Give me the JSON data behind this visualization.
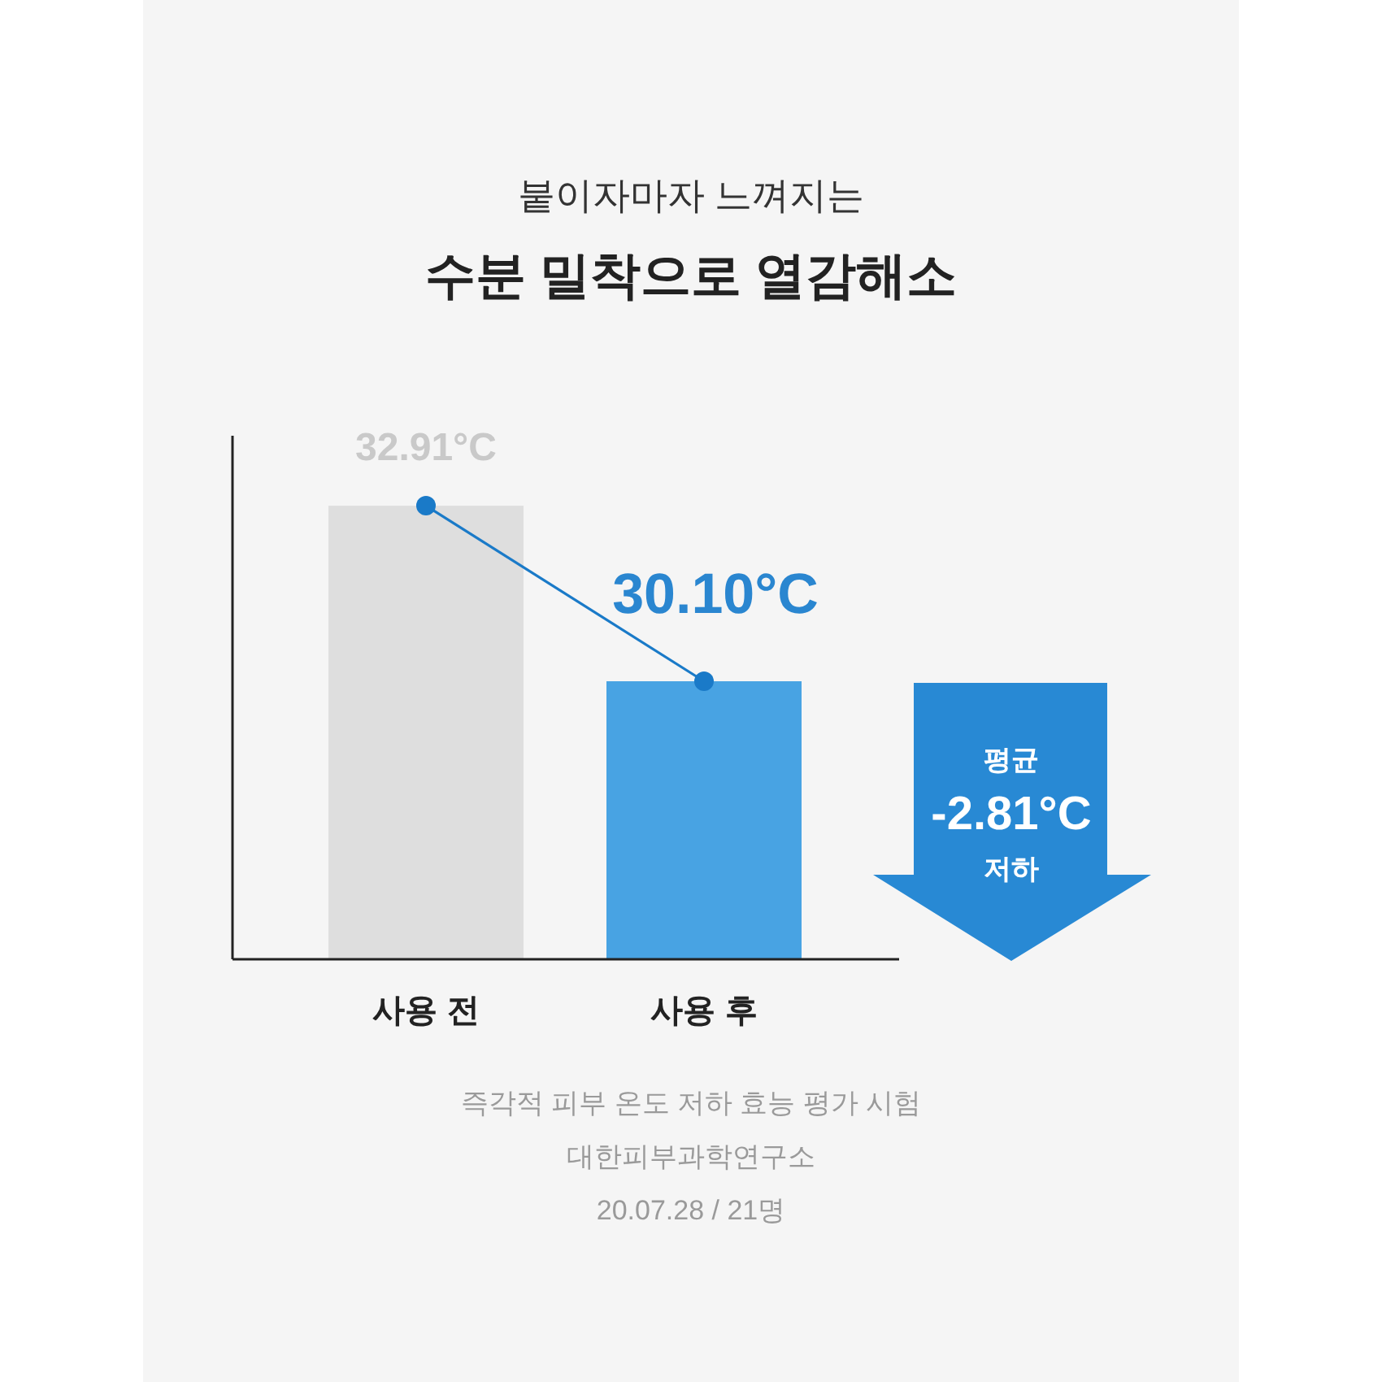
{
  "chart_data": {
    "type": "bar",
    "subtitle": "붙이자마자 느껴지는",
    "title": "수분 밀착으로 열감해소",
    "categories": [
      "사용 전",
      "사용 후"
    ],
    "series": [
      {
        "colors": [
          "#dedede",
          "#48a3e3"
        ],
        "values": [
          32.91,
          30.1
        ],
        "value_labels": [
          "32.91°C",
          "30.10°C"
        ]
      },
      {
        "type": "line",
        "color": "#1a7ac8",
        "values": [
          32.91,
          30.1
        ]
      }
    ],
    "ylim": [
      25.65,
      34.03
    ],
    "marker": "circle",
    "grid": false,
    "tick_labels": "x",
    "annotations": [
      "평균\n-2.81°C\n저하",
      "즉각적 피부 온도 저하 효능 평가 시험",
      "대한피부과학연구소",
      "20.07.28 / 21명"
    ]
  }
}
